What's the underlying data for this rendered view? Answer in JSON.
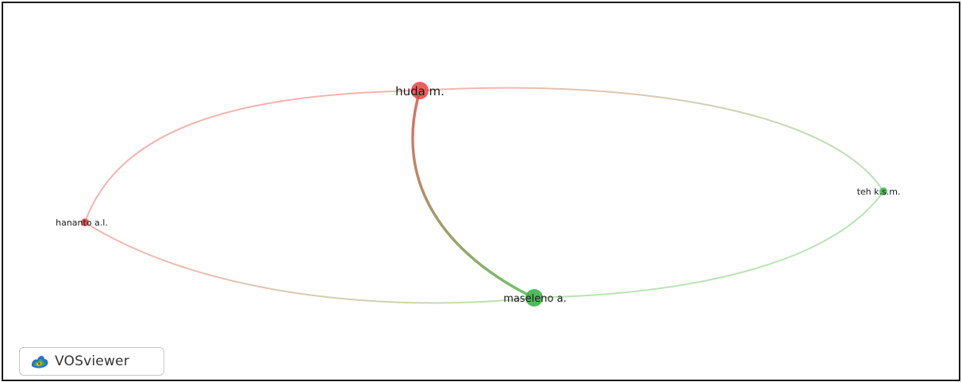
{
  "network": {
    "nodes": [
      {
        "id": "huda",
        "label": "huda m.",
        "cluster": "red",
        "weight": "large"
      },
      {
        "id": "hananto",
        "label": "hananto a.l.",
        "cluster": "red",
        "weight": "small"
      },
      {
        "id": "teh",
        "label": "teh k.s.m.",
        "cluster": "green",
        "weight": "small"
      },
      {
        "id": "maseleno",
        "label": "maseleno a.",
        "cluster": "green",
        "weight": "large"
      }
    ],
    "links": [
      {
        "source": "huda",
        "target": "hananto"
      },
      {
        "source": "huda",
        "target": "teh"
      },
      {
        "source": "huda",
        "target": "maseleno"
      },
      {
        "source": "hananto",
        "target": "maseleno"
      },
      {
        "source": "teh",
        "target": "maseleno"
      }
    ],
    "colors": {
      "red": "#e8433f",
      "green": "#3cb44b",
      "red_link": "#f5b3ae",
      "green_link": "#b9e3b4"
    }
  },
  "badge": {
    "label": "VOSviewer",
    "icon": "vosviewer-logo-icon"
  }
}
